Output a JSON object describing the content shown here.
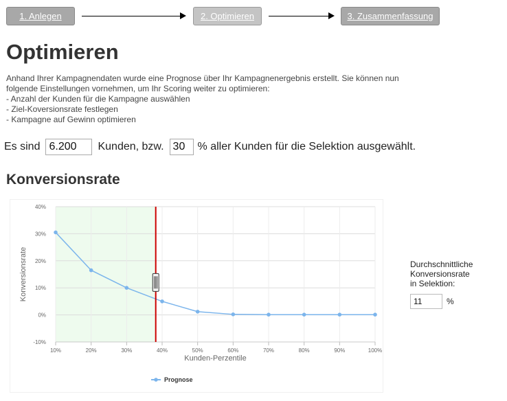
{
  "steps": [
    {
      "label": "1. Anlegen"
    },
    {
      "label": "2. Optimieren"
    },
    {
      "label": "3. Zusammenfassung"
    }
  ],
  "page_title": "Optimieren",
  "intro": {
    "line1": "Anhand Ihrer Kampagnendaten wurde eine Prognose über Ihr Kampagnenergebnis erstellt. Sie können nun",
    "line2": "folgende Einstellungen vornehmen, um Ihr Scoring weiter zu optimieren:",
    "bullet1": "- Anzahl der Kunden für die Kampagne auswählen",
    "bullet2": "- Ziel-Koversionsrate festlegen",
    "bullet3": "- Kampagne auf Gewinn optimieren"
  },
  "selection": {
    "prefix": "Es sind",
    "customers_value": "6.200",
    "middle": "Kunden, bzw.",
    "percent_value": "30",
    "suffix": "% aller Kunden für die Selektion ausgewählt."
  },
  "section_title": "Konversionsrate",
  "side": {
    "label_line1": "Durchschnittliche",
    "label_line2": "Konversionsrate",
    "label_line3": "in Selektion:",
    "rate_value": "11",
    "unit": "%"
  },
  "chart_data": {
    "type": "line",
    "x": [
      "10%",
      "20%",
      "30%",
      "40%",
      "50%",
      "60%",
      "70%",
      "80%",
      "90%",
      "100%"
    ],
    "x_numeric": [
      10,
      20,
      30,
      40,
      50,
      60,
      70,
      80,
      90,
      100
    ],
    "y_ticks": [
      "40%",
      "30%",
      "20%",
      "10%",
      "0%",
      "-10%"
    ],
    "y_tick_values": [
      40,
      30,
      20,
      10,
      0,
      -10
    ],
    "series": [
      {
        "name": "Prognose",
        "values": [
          30.5,
          16.5,
          10,
          5,
          1.2,
          0.2,
          0.1,
          0.1,
          0.1,
          0.1
        ],
        "color": "#7cb5ec"
      }
    ],
    "xlabel": "Kunden-Perzentile",
    "ylabel": "Konversionsrate",
    "xlim": [
      10,
      100
    ],
    "ylim": [
      -10,
      40
    ],
    "selection_end": 38.2,
    "selection_color": "#eefbee",
    "selection_line_color": "#cc0000",
    "grid": true,
    "legend_position": "bottom"
  }
}
